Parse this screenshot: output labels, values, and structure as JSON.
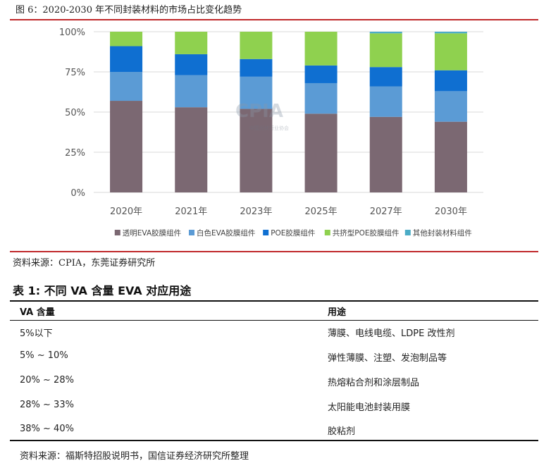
{
  "figure": {
    "caption": "图 6：2020-2030 年不同封装材料的市场占比变化趋势",
    "watermark": "CPIA",
    "watermark_sub": "中国光伏行业协会",
    "source": "资料来源：CPIA，东莞证券研究所"
  },
  "chart_data": {
    "type": "bar",
    "stacked": true,
    "categories": [
      "2020年",
      "2021年",
      "2023年",
      "2025年",
      "2027年",
      "2030年"
    ],
    "y_ticks": [
      "0%",
      "25%",
      "50%",
      "75%",
      "100%"
    ],
    "ylim": [
      0,
      100
    ],
    "grid": true,
    "legend_position": "bottom",
    "series": [
      {
        "name": "透明EVA胶膜组件",
        "color": "#7b6872",
        "values": [
          57,
          53,
          52,
          49,
          47,
          44
        ]
      },
      {
        "name": "白色EVA胶膜组件",
        "color": "#5b9bd5",
        "values": [
          18,
          20,
          20,
          19,
          19,
          19
        ]
      },
      {
        "name": "POE胶膜组件",
        "color": "#0f6fd1",
        "values": [
          16,
          13,
          11,
          11,
          12,
          13
        ]
      },
      {
        "name": "共挤型POE胶膜组件",
        "color": "#8fd14f",
        "values": [
          9,
          14,
          17,
          21,
          21,
          23
        ]
      },
      {
        "name": "其他封装材料组件",
        "color": "#4bacc6",
        "values": [
          0,
          0,
          0,
          0,
          1,
          1
        ]
      }
    ]
  },
  "table": {
    "title": "表 1:  不同 VA 含量 EVA 对应用途",
    "headers": [
      "VA 含量",
      "用途"
    ],
    "rows": [
      [
        "5%以下",
        "薄膜、电线电缆、LDPE 改性剂"
      ],
      [
        "5% ~ 10%",
        "弹性薄膜、注塑、发泡制品等"
      ],
      [
        "20% ~ 28%",
        "热熔粘合剂和涂层制品"
      ],
      [
        "28% ~ 33%",
        "太阳能电池封装用膜"
      ],
      [
        "38% ~ 40%",
        "胶粘剂"
      ]
    ],
    "source": "资料来源：福斯特招股说明书，国信证券经济研究所整理"
  }
}
